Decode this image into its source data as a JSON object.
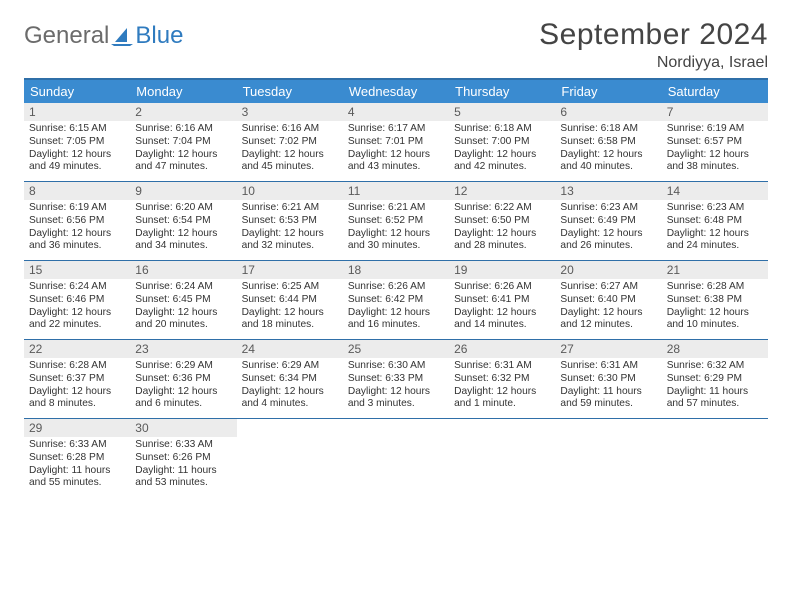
{
  "logo": {
    "part1": "General",
    "part2": "Blue"
  },
  "title": "September 2024",
  "location": "Nordiyya, Israel",
  "header_bg": "#3a8bd0",
  "border_color": "#2f6fa8",
  "daynum_bg": "#ececec",
  "dow": [
    "Sunday",
    "Monday",
    "Tuesday",
    "Wednesday",
    "Thursday",
    "Friday",
    "Saturday"
  ],
  "weeks": [
    [
      {
        "n": "1",
        "sr": "Sunrise: 6:15 AM",
        "ss": "Sunset: 7:05 PM",
        "d1": "Daylight: 12 hours",
        "d2": "and 49 minutes."
      },
      {
        "n": "2",
        "sr": "Sunrise: 6:16 AM",
        "ss": "Sunset: 7:04 PM",
        "d1": "Daylight: 12 hours",
        "d2": "and 47 minutes."
      },
      {
        "n": "3",
        "sr": "Sunrise: 6:16 AM",
        "ss": "Sunset: 7:02 PM",
        "d1": "Daylight: 12 hours",
        "d2": "and 45 minutes."
      },
      {
        "n": "4",
        "sr": "Sunrise: 6:17 AM",
        "ss": "Sunset: 7:01 PM",
        "d1": "Daylight: 12 hours",
        "d2": "and 43 minutes."
      },
      {
        "n": "5",
        "sr": "Sunrise: 6:18 AM",
        "ss": "Sunset: 7:00 PM",
        "d1": "Daylight: 12 hours",
        "d2": "and 42 minutes."
      },
      {
        "n": "6",
        "sr": "Sunrise: 6:18 AM",
        "ss": "Sunset: 6:58 PM",
        "d1": "Daylight: 12 hours",
        "d2": "and 40 minutes."
      },
      {
        "n": "7",
        "sr": "Sunrise: 6:19 AM",
        "ss": "Sunset: 6:57 PM",
        "d1": "Daylight: 12 hours",
        "d2": "and 38 minutes."
      }
    ],
    [
      {
        "n": "8",
        "sr": "Sunrise: 6:19 AM",
        "ss": "Sunset: 6:56 PM",
        "d1": "Daylight: 12 hours",
        "d2": "and 36 minutes."
      },
      {
        "n": "9",
        "sr": "Sunrise: 6:20 AM",
        "ss": "Sunset: 6:54 PM",
        "d1": "Daylight: 12 hours",
        "d2": "and 34 minutes."
      },
      {
        "n": "10",
        "sr": "Sunrise: 6:21 AM",
        "ss": "Sunset: 6:53 PM",
        "d1": "Daylight: 12 hours",
        "d2": "and 32 minutes."
      },
      {
        "n": "11",
        "sr": "Sunrise: 6:21 AM",
        "ss": "Sunset: 6:52 PM",
        "d1": "Daylight: 12 hours",
        "d2": "and 30 minutes."
      },
      {
        "n": "12",
        "sr": "Sunrise: 6:22 AM",
        "ss": "Sunset: 6:50 PM",
        "d1": "Daylight: 12 hours",
        "d2": "and 28 minutes."
      },
      {
        "n": "13",
        "sr": "Sunrise: 6:23 AM",
        "ss": "Sunset: 6:49 PM",
        "d1": "Daylight: 12 hours",
        "d2": "and 26 minutes."
      },
      {
        "n": "14",
        "sr": "Sunrise: 6:23 AM",
        "ss": "Sunset: 6:48 PM",
        "d1": "Daylight: 12 hours",
        "d2": "and 24 minutes."
      }
    ],
    [
      {
        "n": "15",
        "sr": "Sunrise: 6:24 AM",
        "ss": "Sunset: 6:46 PM",
        "d1": "Daylight: 12 hours",
        "d2": "and 22 minutes."
      },
      {
        "n": "16",
        "sr": "Sunrise: 6:24 AM",
        "ss": "Sunset: 6:45 PM",
        "d1": "Daylight: 12 hours",
        "d2": "and 20 minutes."
      },
      {
        "n": "17",
        "sr": "Sunrise: 6:25 AM",
        "ss": "Sunset: 6:44 PM",
        "d1": "Daylight: 12 hours",
        "d2": "and 18 minutes."
      },
      {
        "n": "18",
        "sr": "Sunrise: 6:26 AM",
        "ss": "Sunset: 6:42 PM",
        "d1": "Daylight: 12 hours",
        "d2": "and 16 minutes."
      },
      {
        "n": "19",
        "sr": "Sunrise: 6:26 AM",
        "ss": "Sunset: 6:41 PM",
        "d1": "Daylight: 12 hours",
        "d2": "and 14 minutes."
      },
      {
        "n": "20",
        "sr": "Sunrise: 6:27 AM",
        "ss": "Sunset: 6:40 PM",
        "d1": "Daylight: 12 hours",
        "d2": "and 12 minutes."
      },
      {
        "n": "21",
        "sr": "Sunrise: 6:28 AM",
        "ss": "Sunset: 6:38 PM",
        "d1": "Daylight: 12 hours",
        "d2": "and 10 minutes."
      }
    ],
    [
      {
        "n": "22",
        "sr": "Sunrise: 6:28 AM",
        "ss": "Sunset: 6:37 PM",
        "d1": "Daylight: 12 hours",
        "d2": "and 8 minutes."
      },
      {
        "n": "23",
        "sr": "Sunrise: 6:29 AM",
        "ss": "Sunset: 6:36 PM",
        "d1": "Daylight: 12 hours",
        "d2": "and 6 minutes."
      },
      {
        "n": "24",
        "sr": "Sunrise: 6:29 AM",
        "ss": "Sunset: 6:34 PM",
        "d1": "Daylight: 12 hours",
        "d2": "and 4 minutes."
      },
      {
        "n": "25",
        "sr": "Sunrise: 6:30 AM",
        "ss": "Sunset: 6:33 PM",
        "d1": "Daylight: 12 hours",
        "d2": "and 3 minutes."
      },
      {
        "n": "26",
        "sr": "Sunrise: 6:31 AM",
        "ss": "Sunset: 6:32 PM",
        "d1": "Daylight: 12 hours",
        "d2": "and 1 minute."
      },
      {
        "n": "27",
        "sr": "Sunrise: 6:31 AM",
        "ss": "Sunset: 6:30 PM",
        "d1": "Daylight: 11 hours",
        "d2": "and 59 minutes."
      },
      {
        "n": "28",
        "sr": "Sunrise: 6:32 AM",
        "ss": "Sunset: 6:29 PM",
        "d1": "Daylight: 11 hours",
        "d2": "and 57 minutes."
      }
    ],
    [
      {
        "n": "29",
        "sr": "Sunrise: 6:33 AM",
        "ss": "Sunset: 6:28 PM",
        "d1": "Daylight: 11 hours",
        "d2": "and 55 minutes."
      },
      {
        "n": "30",
        "sr": "Sunrise: 6:33 AM",
        "ss": "Sunset: 6:26 PM",
        "d1": "Daylight: 11 hours",
        "d2": "and 53 minutes."
      },
      null,
      null,
      null,
      null,
      null
    ]
  ]
}
